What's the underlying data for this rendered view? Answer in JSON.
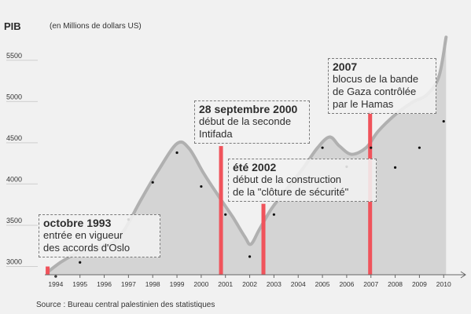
{
  "chart_data": {
    "type": "area",
    "title": "PIB",
    "subtitle": "(en Millions de dollars US)",
    "source": "Source : Bureau central palestinien des statistiques",
    "y_ticks": [
      3000,
      3500,
      4000,
      4500,
      5000,
      5500
    ],
    "ylim": [
      2900,
      5850
    ],
    "x_ticks": [
      "1994",
      "1995",
      "1996",
      "1997",
      "1998",
      "1999",
      "2000",
      "2001",
      "2002",
      "2003",
      "2004",
      "2005",
      "2006",
      "2007",
      "2008",
      "2009",
      "2010"
    ],
    "xlim": [
      1993.55,
      2010.9
    ],
    "series": [
      {
        "x": [
          1993.7,
          1994.2,
          1994.8,
          1995.5,
          1996.2,
          1996.8,
          1997.5,
          1998.2,
          1999.0,
          1999.5,
          2000.1,
          2000.7,
          2001.3,
          2001.8,
          2002.05,
          2002.4,
          2002.9,
          2003.5,
          2004.2,
          2004.8,
          2005.3,
          2005.7,
          2006.2,
          2006.8,
          2007.3,
          2008.0,
          2008.7,
          2009.3,
          2009.8,
          2010.1
        ],
        "values": [
          2940,
          3050,
          3150,
          3210,
          3260,
          3430,
          3800,
          4150,
          4490,
          4430,
          4130,
          3860,
          3600,
          3360,
          3270,
          3450,
          3700,
          3930,
          4190,
          4440,
          4570,
          4460,
          4360,
          4440,
          4640,
          4840,
          4990,
          5080,
          5300,
          5780
        ]
      },
      {
        "x": [
          1994,
          1995,
          1996,
          1997,
          1998,
          1999,
          2000,
          2001,
          2002,
          2003,
          2004,
          2005,
          2006,
          2007,
          2008,
          2009,
          2010
        ],
        "values": [
          2880,
          3050,
          3260,
          3570,
          4020,
          4380,
          3970,
          3630,
          3120,
          3630,
          4050,
          4440,
          4210,
          4440,
          4200,
          4440,
          4760
        ]
      }
    ],
    "events": [
      {
        "x": 1993.65,
        "top": 3000
      },
      {
        "x": 2000.8,
        "top": 4460
      },
      {
        "x": 2002.55,
        "top": 3760
      },
      {
        "x": 2006.95,
        "top": 4880
      }
    ],
    "colors": {
      "area": "#d4d4d4",
      "line": "#b0b0b0",
      "event": "#f0535b",
      "dot": "#111111",
      "axis": "#666666",
      "background": "#f1f1f1"
    }
  },
  "annotations": [
    {
      "head": "octobre 1993",
      "body": "entrée en vigueur\ndes accords d'Oslo"
    },
    {
      "head": "28 septembre 2000",
      "body": "début de la seconde\nIntifada"
    },
    {
      "head": "été 2002",
      "body": "début de la construction\nde la \"clôture de sécurité\""
    },
    {
      "head": "2007",
      "body": "blocus de la bande\nde Gaza contrôlée\npar le Hamas"
    }
  ]
}
